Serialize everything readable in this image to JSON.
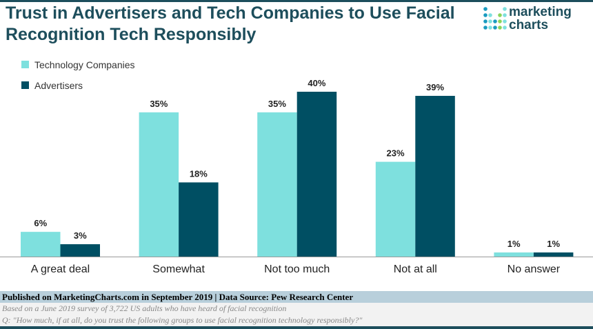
{
  "chart_data": {
    "type": "bar",
    "title": "Trust in Advertisers and Tech Companies to Use Facial Recognition Tech Responsibly",
    "categories": [
      "A great deal",
      "Somewhat",
      "Not too much",
      "Not at all",
      "No answer"
    ],
    "series": [
      {
        "name": "Technology Companies",
        "color": "#7ee0de",
        "values": [
          6,
          35,
          35,
          23,
          1
        ]
      },
      {
        "name": "Advertisers",
        "color": "#004f63",
        "values": [
          3,
          18,
          40,
          39,
          1
        ]
      }
    ],
    "ylim": [
      0,
      40
    ],
    "grid": false,
    "legend": "top-left",
    "value_suffix": "%"
  },
  "logo": {
    "line1": "marketing",
    "line2": "charts"
  },
  "footer": {
    "published": "Published on MarketingCharts.com in September 2019 | Data Source: Pew Research Center",
    "note": "Based on a June 2019 survey of 3,722 US adults who have heard of facial recognition",
    "question": "Q: \"How much, if at all, do you trust the following groups to use facial recognition technology responsibly?\""
  }
}
